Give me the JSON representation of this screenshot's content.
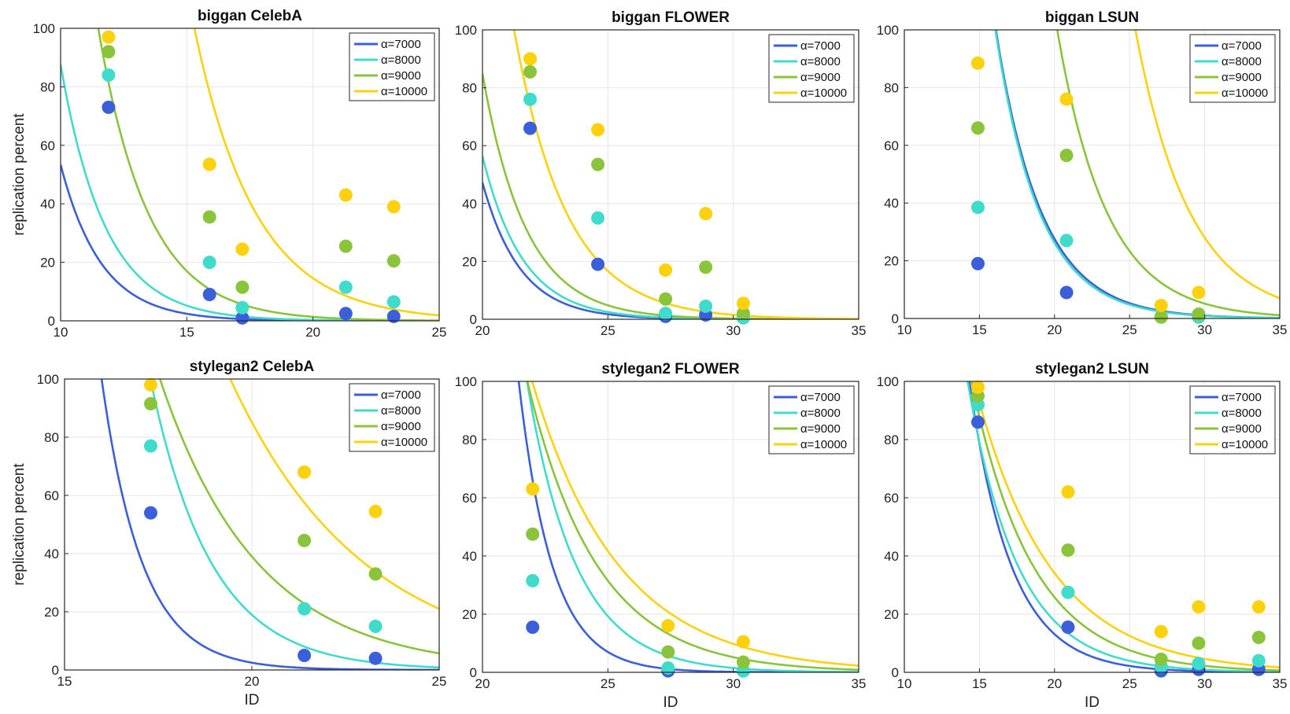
{
  "figure": {
    "legend_prefix": "α=",
    "legend_placement": "top-right",
    "grid": true,
    "colors": {
      "a7000": "#3b5fdb",
      "a8000": "#40dccb",
      "a9000": "#8ac43a",
      "a10000": "#fdd10b"
    }
  },
  "chart_data": [
    {
      "type": "scatter",
      "title": "biggan CelebA",
      "xlabel": "",
      "ylabel": "replication percent",
      "xlim": [
        10,
        25
      ],
      "ylim": [
        0,
        100
      ],
      "xticks": [
        10,
        15,
        20,
        25
      ],
      "yticks": [
        0,
        20,
        40,
        60,
        80,
        100
      ],
      "x": [
        11.9,
        15.9,
        17.2,
        21.3,
        23.2
      ],
      "series": [
        {
          "name": "7000",
          "color_key": "a7000",
          "values": [
            73,
            9,
            1,
            2.5,
            1.5
          ],
          "fit": [
            2.8,
            0.62
          ]
        },
        {
          "name": "8000",
          "color_key": "a8000",
          "values": [
            84,
            20,
            4.5,
            11.5,
            6.5
          ],
          "fit": [
            3.4,
            0.565
          ]
        },
        {
          "name": "9000",
          "color_key": "a9000",
          "values": [
            92,
            35.5,
            11.5,
            25.5,
            20.5
          ],
          "fit": [
            4.4,
            0.505
          ]
        },
        {
          "name": "10000",
          "color_key": "a10000",
          "values": [
            97,
            53.5,
            24.5,
            43,
            39
          ],
          "fit": [
            6.0,
            0.41
          ]
        }
      ]
    },
    {
      "type": "scatter",
      "title": "biggan FLOWER",
      "xlabel": "",
      "ylabel": "",
      "xlim": [
        20,
        35
      ],
      "ylim": [
        0,
        100
      ],
      "xticks": [
        20,
        25,
        30,
        35
      ],
      "yticks": [
        0,
        20,
        40,
        60,
        80,
        100
      ],
      "x": [
        21.9,
        24.6,
        27.3,
        28.9,
        30.4
      ],
      "series": [
        {
          "name": "7000",
          "color_key": "a7000",
          "values": [
            66,
            19,
            1,
            1.5,
            0.5
          ],
          "fit": [
            2.6,
            0.66
          ]
        },
        {
          "name": "8000",
          "color_key": "a8000",
          "values": [
            76,
            35,
            2,
            4.5,
            0.5
          ],
          "fit": [
            2.85,
            0.622
          ]
        },
        {
          "name": "9000",
          "color_key": "a9000",
          "values": [
            85.5,
            53.5,
            7,
            18,
            2
          ],
          "fit": [
            3.35,
            0.574
          ]
        },
        {
          "name": "10000",
          "color_key": "a10000",
          "values": [
            90,
            65.5,
            17,
            36.5,
            5.5
          ],
          "fit": [
            4.3,
            0.479
          ]
        }
      ]
    },
    {
      "type": "scatter",
      "title": "biggan LSUN",
      "xlabel": "",
      "ylabel": "",
      "xlim": [
        10,
        35
      ],
      "ylim": [
        0,
        100
      ],
      "xticks": [
        10,
        15,
        20,
        25,
        30,
        35
      ],
      "yticks": [
        0,
        20,
        40,
        60,
        80,
        100
      ],
      "x": [
        14.9,
        20.8,
        27.1,
        29.6
      ],
      "series": [
        {
          "name": "7000",
          "color_key": "a7000",
          "values": [
            19,
            9,
            0.5,
            0.5
          ],
          "fit": [
            5.0,
            0.33
          ]
        },
        {
          "name": "8000",
          "color_key": "a8000",
          "values": [
            38.5,
            27,
            0.5,
            0.5
          ],
          "fit": [
            5.0,
            0.34
          ]
        },
        {
          "name": "9000",
          "color_key": "a9000",
          "values": [
            66,
            56.5,
            0.5,
            1.5
          ],
          "fit": [
            6.2,
            0.302
          ]
        },
        {
          "name": "10000",
          "color_key": "a10000",
          "values": [
            88.5,
            76,
            4.5,
            9
          ],
          "fit": [
            7.5,
            0.276
          ]
        }
      ]
    },
    {
      "type": "scatter",
      "title": "stylegan2 CelebA",
      "xlabel": "ID",
      "ylabel": "replication percent",
      "xlim": [
        15,
        25
      ],
      "ylim": [
        0,
        100
      ],
      "xticks": [
        15,
        20,
        25
      ],
      "yticks": [
        0,
        20,
        40,
        60,
        80,
        100
      ],
      "x": [
        17.3,
        21.4,
        23.3
      ],
      "series": [
        {
          "name": "7000",
          "color_key": "a7000",
          "values": [
            54,
            5,
            4
          ],
          "fit": [
            3.4,
            0.92
          ]
        },
        {
          "name": "8000",
          "color_key": "a8000",
          "values": [
            77,
            21,
            15
          ],
          "fit": [
            4.6,
            0.614
          ]
        },
        {
          "name": "9000",
          "color_key": "a9000",
          "values": [
            91.5,
            44.5,
            33
          ],
          "fit": [
            4.7,
            0.384
          ]
        },
        {
          "name": "10000",
          "color_key": "a10000",
          "values": [
            98,
            68,
            54.5
          ],
          "fit": [
            5.2,
            0.28
          ]
        }
      ]
    },
    {
      "type": "scatter",
      "title": "stylegan2 FLOWER",
      "xlabel": "ID",
      "ylabel": "",
      "xlim": [
        20,
        35
      ],
      "ylim": [
        0,
        100
      ],
      "xticks": [
        20,
        25,
        30,
        35
      ],
      "yticks": [
        0,
        20,
        40,
        60,
        80,
        100
      ],
      "x": [
        22.0,
        27.4,
        30.4
      ],
      "series": [
        {
          "name": "7000",
          "color_key": "a7000",
          "values": [
            15.5,
            0.5,
            0.5
          ],
          "fit": [
            4.19,
            0.748
          ]
        },
        {
          "name": "8000",
          "color_key": "a8000",
          "values": [
            31.5,
            1.5,
            0.5
          ],
          "fit": [
            4.49,
            0.51
          ]
        },
        {
          "name": "9000",
          "color_key": "a9000",
          "values": [
            47.5,
            7,
            3.5
          ],
          "fit": [
            4.53,
            0.36
          ]
        },
        {
          "name": "10000",
          "color_key": "a10000",
          "values": [
            63,
            16,
            10.5
          ],
          "fit": [
            4.6,
            0.29
          ]
        }
      ]
    },
    {
      "type": "scatter",
      "title": "stylegan2 LSUN",
      "xlabel": "ID",
      "ylabel": "",
      "xlim": [
        10,
        35
      ],
      "ylim": [
        0,
        100
      ],
      "xticks": [
        10,
        15,
        20,
        25,
        30,
        35
      ],
      "yticks": [
        0,
        20,
        40,
        60,
        80,
        100
      ],
      "x": [
        14.9,
        20.9,
        27.1,
        29.6,
        33.6
      ],
      "series": [
        {
          "name": "7000",
          "color_key": "a7000",
          "values": [
            86,
            15.5,
            0.5,
            1,
            1
          ],
          "fit": [
            4.4,
            0.358
          ]
        },
        {
          "name": "8000",
          "color_key": "a8000",
          "values": [
            92,
            27.5,
            2,
            3,
            4
          ],
          "fit": [
            4.4,
            0.3
          ]
        },
        {
          "name": "9000",
          "color_key": "a9000",
          "values": [
            95,
            42,
            4.5,
            10,
            12
          ],
          "fit": [
            4.5,
            0.245
          ]
        },
        {
          "name": "10000",
          "color_key": "a10000",
          "values": [
            98,
            62,
            14,
            22.5,
            22.5
          ],
          "fit": [
            4.55,
            0.2
          ]
        }
      ]
    }
  ]
}
